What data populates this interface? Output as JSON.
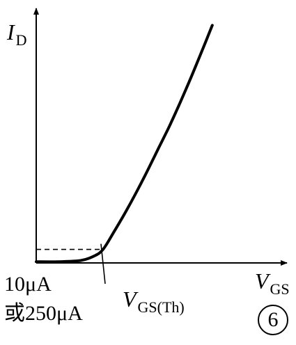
{
  "chart_data": {
    "type": "line",
    "title": "",
    "xlabel": {
      "symbol": "V",
      "subscript": "GS"
    },
    "ylabel": {
      "symbol": "I",
      "subscript": "D"
    },
    "x_ticks": [],
    "y_ticks": [],
    "grid": false,
    "xlim": [
      0,
      10
    ],
    "ylim": [
      0,
      10
    ],
    "threshold": {
      "x": 3.0,
      "y": 0.55,
      "label": {
        "symbol": "V",
        "subscript": "GS(Th)"
      }
    },
    "annotation": {
      "line1": "10μA",
      "line2": "或250μA"
    },
    "series": [
      {
        "x": [
          0,
          1.0,
          2.0,
          2.6,
          3.0,
          3.5,
          4.0,
          4.5,
          5.0,
          5.5,
          6.0,
          6.5,
          7.0,
          7.5,
          7.9
        ],
        "values": [
          0.05,
          0.05,
          0.1,
          0.28,
          0.55,
          1.28,
          2.05,
          2.88,
          3.76,
          4.68,
          5.6,
          6.6,
          7.65,
          8.75,
          9.65
        ]
      }
    ],
    "badge": "6"
  }
}
